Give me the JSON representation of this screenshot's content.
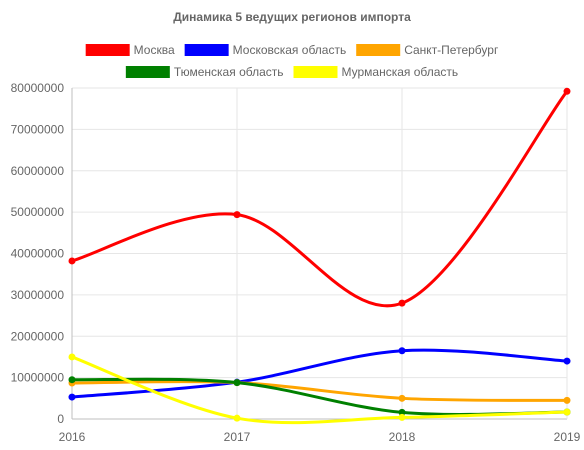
{
  "chart_data": {
    "type": "line",
    "title": "Динамика 5 ведущих регионов импорта",
    "xlabel": "",
    "ylabel": "",
    "x": [
      "2016",
      "2017",
      "2018",
      "2019"
    ],
    "ylim": [
      0,
      80000000
    ],
    "yticks": [
      0,
      10000000,
      20000000,
      30000000,
      40000000,
      50000000,
      60000000,
      70000000,
      80000000
    ],
    "ytick_labels": [
      "0",
      "10000000",
      "20000000",
      "30000000",
      "40000000",
      "50000000",
      "60000000",
      "70000000",
      "80000000"
    ],
    "grid": true,
    "legend_position": "top",
    "series": [
      {
        "name": "Москва",
        "color": "#ff0000",
        "values": [
          38200000,
          49400000,
          28000000,
          79200000
        ]
      },
      {
        "name": "Московская область",
        "color": "#0000ff",
        "values": [
          5300000,
          8900000,
          16500000,
          14000000
        ]
      },
      {
        "name": "Санкт-Петербург",
        "color": "#ffa500",
        "values": [
          8700000,
          8800000,
          5000000,
          4500000
        ]
      },
      {
        "name": "Тюменская область",
        "color": "#008000",
        "values": [
          9500000,
          8800000,
          1600000,
          1700000
        ]
      },
      {
        "name": "Мурманская область",
        "color": "#ffff00",
        "values": [
          15000000,
          200000,
          400000,
          1700000
        ]
      }
    ]
  }
}
